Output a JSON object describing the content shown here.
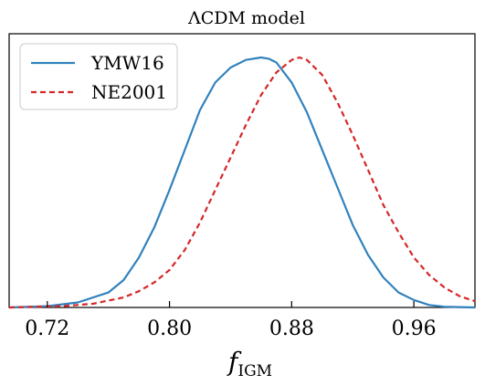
{
  "chart_data": {
    "type": "line",
    "title": "ΛCDM model",
    "xlabel": "f",
    "xlabel_sub": "IGM",
    "ylabel": "",
    "xlim": [
      0.695,
      1.0
    ],
    "ylim": [
      0.0,
      1.0
    ],
    "xticks": [
      0.72,
      0.8,
      0.88,
      0.96
    ],
    "xtick_labels": [
      "0.72",
      "0.80",
      "0.88",
      "0.96"
    ],
    "yticks_visible": false,
    "grid": false,
    "legend_position": "top-left",
    "series": [
      {
        "name": "YMW16",
        "style": "solid",
        "color": "#3182bd",
        "x": [
          0.695,
          0.72,
          0.74,
          0.76,
          0.77,
          0.78,
          0.79,
          0.8,
          0.81,
          0.82,
          0.83,
          0.84,
          0.85,
          0.86,
          0.865,
          0.87,
          0.88,
          0.89,
          0.9,
          0.91,
          0.92,
          0.93,
          0.94,
          0.95,
          0.96,
          0.97,
          0.98,
          1.0
        ],
        "y": [
          0.0,
          0.005,
          0.02,
          0.06,
          0.11,
          0.2,
          0.32,
          0.47,
          0.63,
          0.79,
          0.9,
          0.96,
          0.99,
          1.0,
          0.995,
          0.98,
          0.9,
          0.78,
          0.63,
          0.48,
          0.33,
          0.21,
          0.12,
          0.06,
          0.03,
          0.01,
          0.003,
          0.0
        ]
      },
      {
        "name": "NE2001",
        "style": "dashed",
        "color": "#d62728",
        "x": [
          0.695,
          0.73,
          0.75,
          0.77,
          0.78,
          0.79,
          0.8,
          0.81,
          0.82,
          0.83,
          0.84,
          0.85,
          0.86,
          0.87,
          0.88,
          0.885,
          0.89,
          0.9,
          0.91,
          0.92,
          0.93,
          0.94,
          0.95,
          0.96,
          0.97,
          0.98,
          0.99,
          1.0
        ],
        "y": [
          0.0,
          0.005,
          0.015,
          0.04,
          0.065,
          0.1,
          0.15,
          0.23,
          0.34,
          0.47,
          0.6,
          0.73,
          0.85,
          0.94,
          0.99,
          1.0,
          0.99,
          0.93,
          0.82,
          0.69,
          0.55,
          0.41,
          0.3,
          0.2,
          0.13,
          0.08,
          0.045,
          0.025
        ]
      }
    ]
  }
}
